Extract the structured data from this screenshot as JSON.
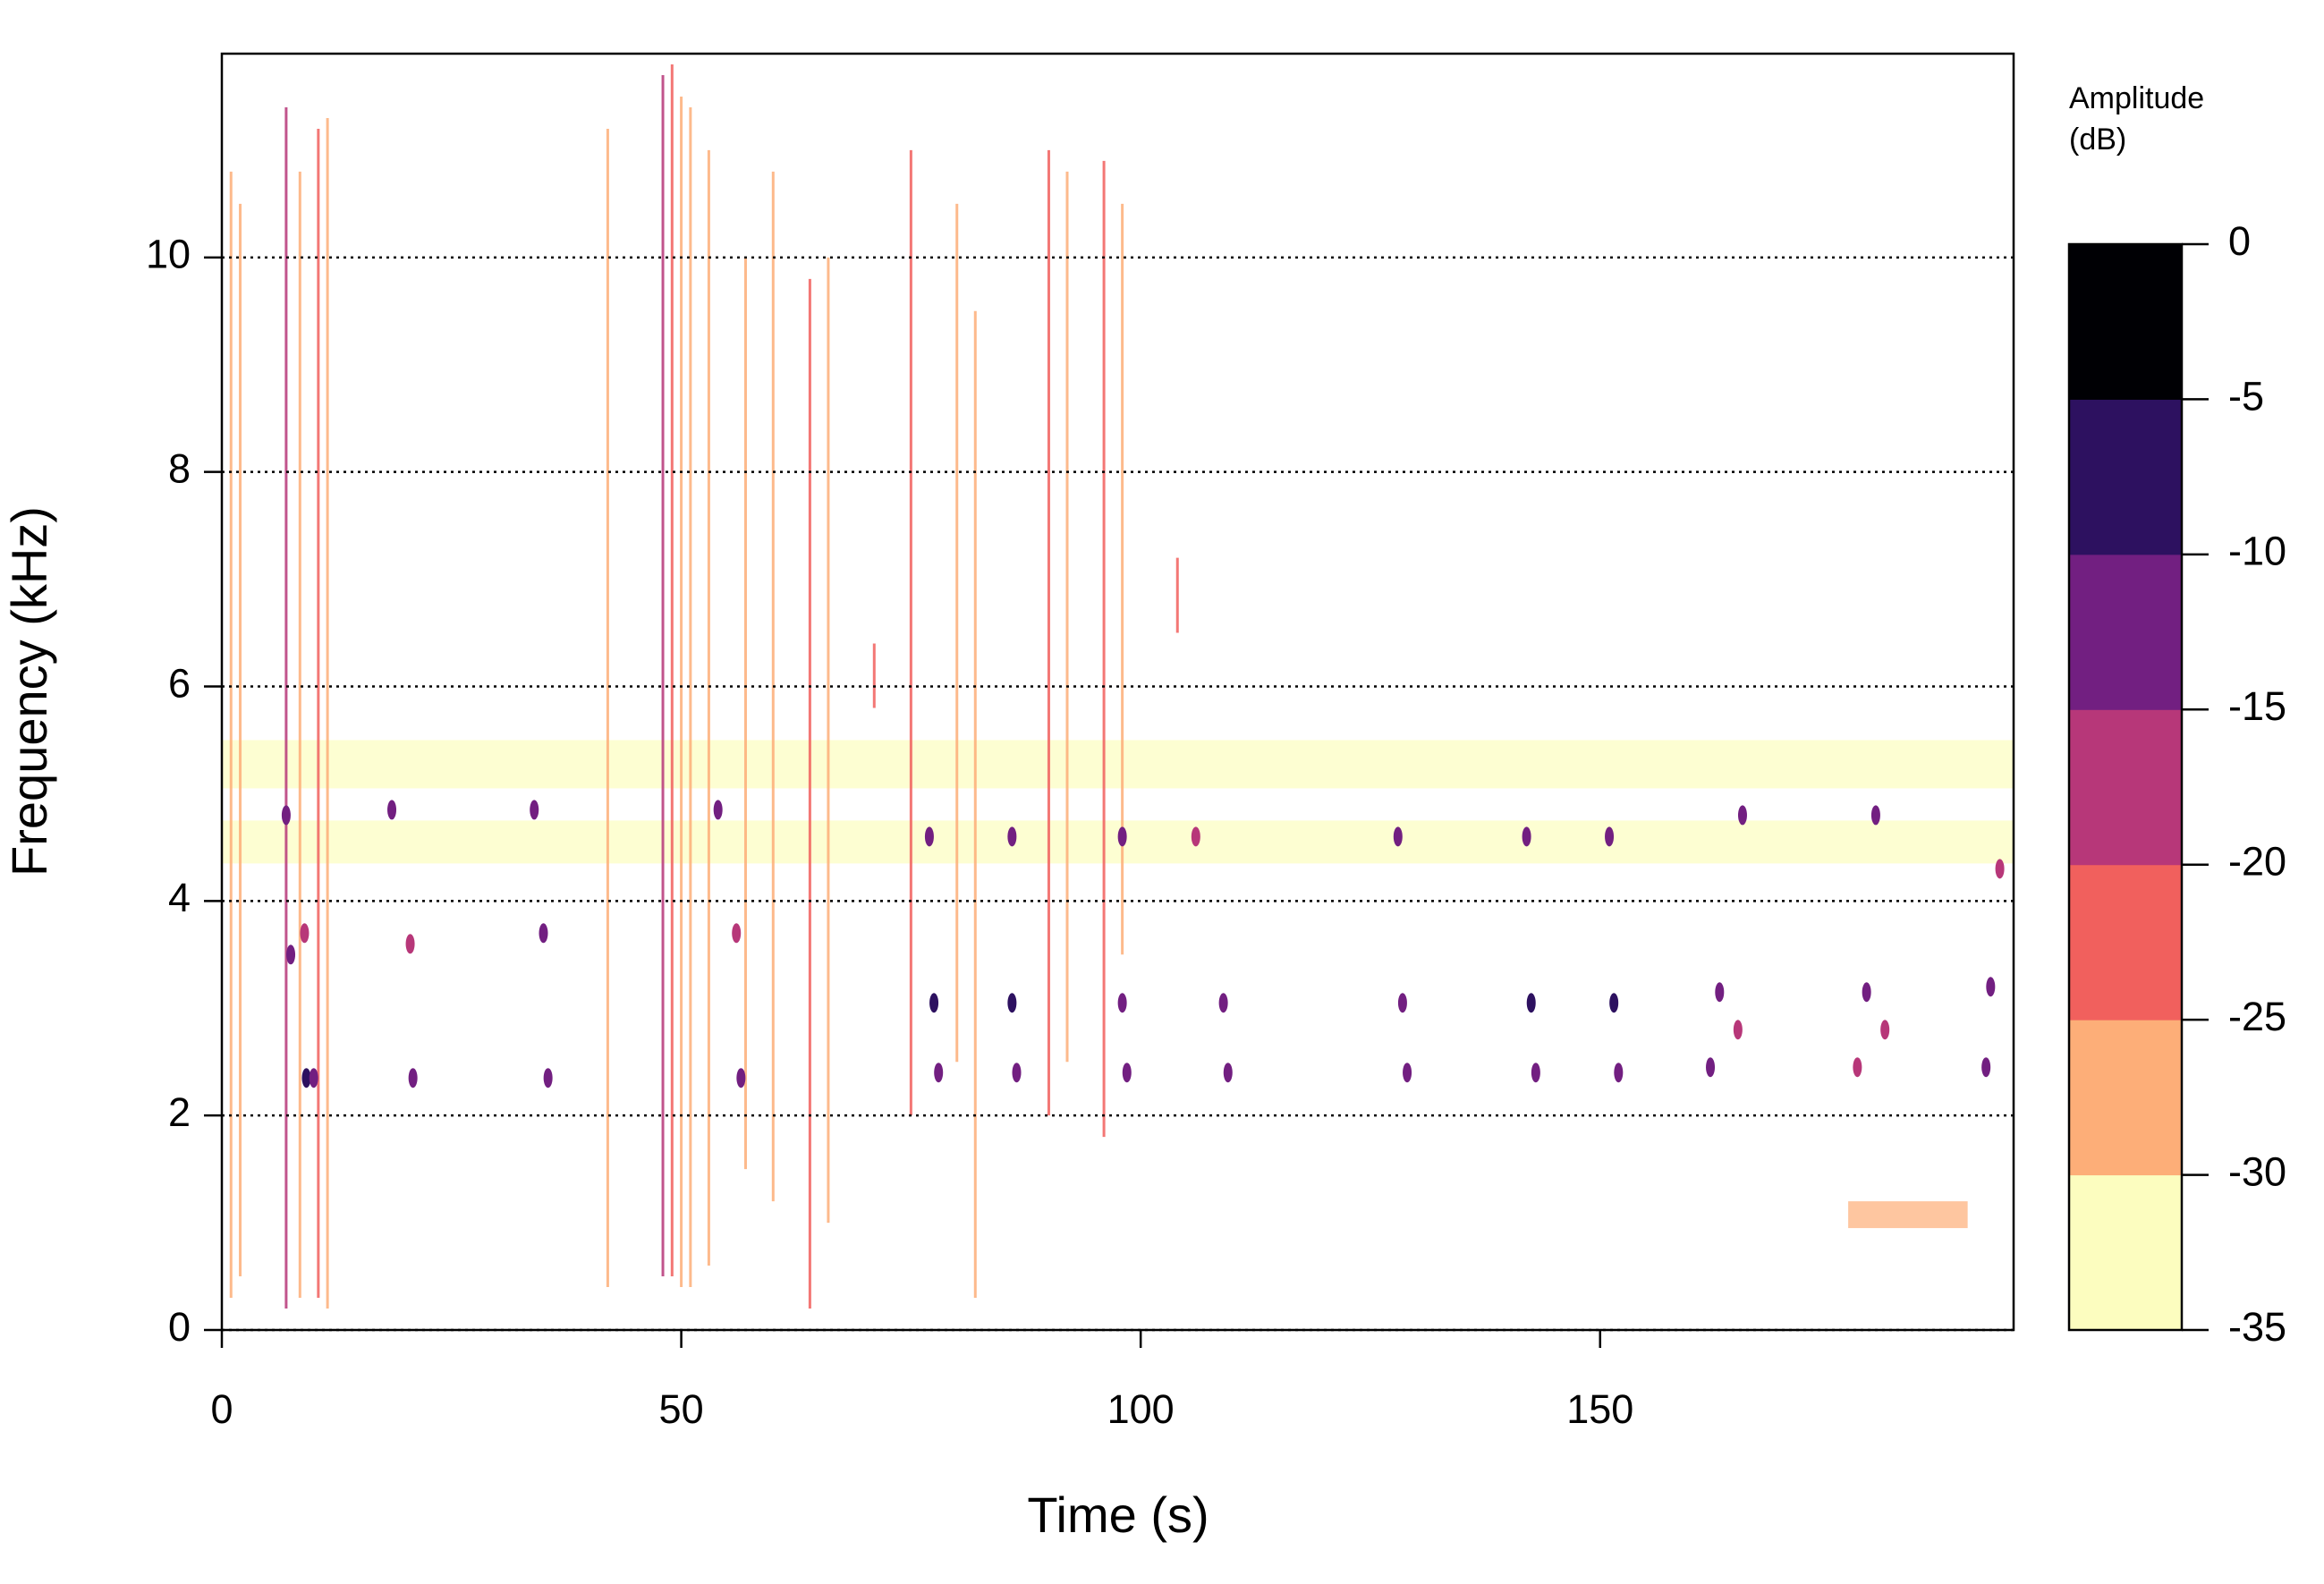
{
  "chart_data": {
    "type": "spectrogram",
    "x_label": "Time (s)",
    "y_label": "Frequency (kHz)",
    "xlim": [
      0,
      195
    ],
    "ylim": [
      0,
      11.9
    ],
    "xticks": [
      0,
      50,
      100,
      150
    ],
    "yticks": [
      0,
      2,
      4,
      6,
      8,
      10
    ],
    "grid": true,
    "colorbar": {
      "title_lines": [
        "Amplitude",
        "(dB)"
      ],
      "lim": [
        -35,
        0
      ],
      "ticks": [
        0,
        -5,
        -10,
        -15,
        -20,
        -25,
        -30,
        -35
      ],
      "colors": [
        "#fcfdbf",
        "#fdae78",
        "#f1605d",
        "#b73779",
        "#721f81",
        "#2d1160",
        "#000004"
      ]
    },
    "bands": {
      "t_start": [
        0,
        0,
        177
      ],
      "t_end": [
        195,
        195,
        190
      ],
      "f_low": [
        4.35,
        5.05,
        0.95
      ],
      "f_high": [
        4.75,
        5.5,
        1.2
      ],
      "amplitude": [
        -33,
        -34,
        -27
      ]
    },
    "clicks": {
      "time": [
        1,
        2,
        7,
        8.5,
        10.5,
        11.5,
        42,
        48,
        49,
        50,
        51,
        53,
        57,
        60,
        64,
        66,
        71,
        75,
        80,
        82,
        90,
        92,
        96,
        98,
        104
      ],
      "f_min": [
        0.3,
        0.5,
        0.2,
        0.3,
        0.3,
        0.2,
        0.4,
        0.5,
        0.5,
        0.4,
        0.4,
        0.6,
        1.5,
        1.2,
        0.2,
        1.0,
        5.8,
        2.0,
        2.5,
        0.3,
        2.0,
        2.5,
        1.8,
        3.5,
        6.5
      ],
      "f_max": [
        10.8,
        10.5,
        11.4,
        10.8,
        11.2,
        11.3,
        11.2,
        11.7,
        11.8,
        11.5,
        11.4,
        11.0,
        10.0,
        10.8,
        9.8,
        10.0,
        6.4,
        11.0,
        10.5,
        9.5,
        11.0,
        10.8,
        10.9,
        10.5,
        7.2
      ],
      "amplitude": [
        -28,
        -30,
        -18,
        -27,
        -22,
        -26,
        -27,
        -20,
        -24,
        -28,
        -26,
        -29,
        -27,
        -28,
        -25,
        -29,
        -22,
        -24,
        -26,
        -30,
        -25,
        -27,
        -24,
        -28,
        -25
      ]
    },
    "events": {
      "time": [
        7,
        7.5,
        9,
        9.2,
        10,
        18.5,
        20.5,
        20.8,
        34,
        35,
        35.5,
        54,
        56,
        56.5,
        77,
        77.5,
        78,
        86,
        86,
        86.5,
        98,
        98,
        98.5,
        106,
        109,
        109.5,
        128,
        128.5,
        129,
        142,
        142.5,
        143,
        151,
        151.5,
        152,
        165.5,
        163,
        162,
        165,
        179,
        180,
        181,
        178,
        192.5,
        193.5,
        192
      ],
      "frequency": [
        4.8,
        3.5,
        3.7,
        2.35,
        2.35,
        4.85,
        3.6,
        2.35,
        4.85,
        3.7,
        2.35,
        4.85,
        3.7,
        2.35,
        4.6,
        3.05,
        2.4,
        4.6,
        3.05,
        2.4,
        4.6,
        3.05,
        2.4,
        4.6,
        3.05,
        2.4,
        4.6,
        3.05,
        2.4,
        4.6,
        3.05,
        2.4,
        4.6,
        3.05,
        2.4,
        4.8,
        3.15,
        2.45,
        2.8,
        3.15,
        4.8,
        2.8,
        2.45,
        3.2,
        4.3,
        2.45
      ],
      "amplitude": [
        -14,
        -13,
        -16,
        -9,
        -11,
        -13,
        -16,
        -11,
        -13,
        -15,
        -12,
        -14,
        -17,
        -13,
        -14,
        -10,
        -12,
        -14,
        -10,
        -11,
        -15,
        -11,
        -12,
        -16,
        -11,
        -12,
        -14,
        -11,
        -13,
        -14,
        -10,
        -12,
        -14,
        -10,
        -11,
        -14,
        -12,
        -14,
        -16,
        -12,
        -15,
        -17,
        -16,
        -13,
        -16,
        -13
      ]
    }
  }
}
